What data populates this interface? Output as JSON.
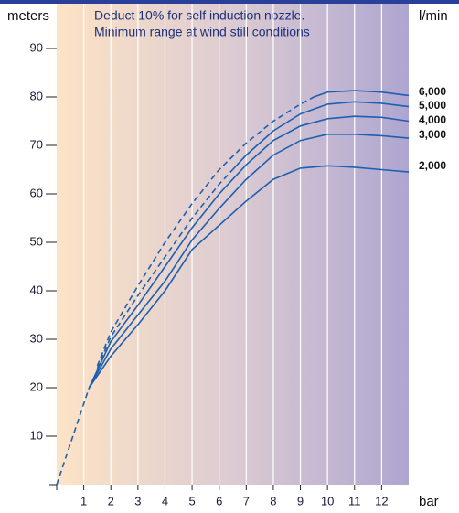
{
  "chart_data": {
    "type": "line",
    "notes": [
      "Deduct 10% for self induction nozzle.",
      "Minimum range at  wind still conditions"
    ],
    "ylabel": "meters",
    "xlabel": "bar",
    "series_unit": "l/min",
    "xlim": [
      0,
      13
    ],
    "xticks": [
      1,
      2,
      3,
      4,
      5,
      6,
      7,
      8,
      9,
      10,
      11,
      12
    ],
    "ylim": [
      0,
      90
    ],
    "yticks": [
      10,
      20,
      30,
      40,
      50,
      60,
      70,
      80,
      90
    ],
    "color": "#1f5fb0",
    "grid": true,
    "common": {
      "x": [
        0,
        1.2
      ],
      "values": [
        0,
        20
      ]
    },
    "series": [
      {
        "name": "6,000",
        "dashed": {
          "x": [
            1.5,
            2,
            3,
            4,
            5,
            6,
            7,
            8,
            9,
            9.5
          ],
          "values": [
            24.5,
            31.5,
            41,
            50,
            58,
            65,
            70.5,
            75,
            78.5,
            80
          ]
        },
        "solid": {
          "x": [
            9.5,
            10,
            11,
            12,
            13
          ],
          "values": [
            80,
            81,
            81.3,
            81,
            80.3
          ]
        }
      },
      {
        "name": "5,000",
        "dashed": {
          "x": [
            1.5,
            2,
            3,
            4,
            5,
            6,
            6.5
          ],
          "values": [
            24,
            30.5,
            39,
            47,
            55,
            62,
            65
          ]
        },
        "solid": {
          "x": [
            6.5,
            7,
            8,
            9,
            10,
            11,
            12,
            13
          ],
          "values": [
            65,
            68,
            73,
            76.5,
            78.5,
            79,
            78.7,
            78
          ]
        }
      },
      {
        "name": "4,000",
        "solid": {
          "x": [
            1.2,
            2,
            3,
            4,
            5,
            6,
            7,
            8,
            9,
            10,
            11,
            12,
            13
          ],
          "values": [
            20,
            29.5,
            37,
            45,
            53,
            60,
            66,
            71,
            74,
            75.5,
            76,
            75.8,
            75
          ]
        }
      },
      {
        "name": "3,000",
        "solid": {
          "x": [
            1.2,
            2,
            3,
            4,
            5,
            6,
            7,
            8,
            9,
            10,
            11,
            12,
            13
          ],
          "values": [
            20,
            28,
            35,
            42,
            50.5,
            57,
            63,
            68,
            71,
            72.3,
            72.3,
            72,
            71.5
          ]
        }
      },
      {
        "name": "2,000",
        "solid": {
          "x": [
            1.2,
            2,
            3,
            4,
            5,
            6,
            7,
            8,
            9,
            10,
            11,
            12,
            13
          ],
          "values": [
            20,
            26.5,
            33,
            40,
            48.5,
            53.5,
            58.5,
            63,
            65.3,
            65.8,
            65.5,
            65,
            64.5
          ]
        }
      }
    ]
  }
}
